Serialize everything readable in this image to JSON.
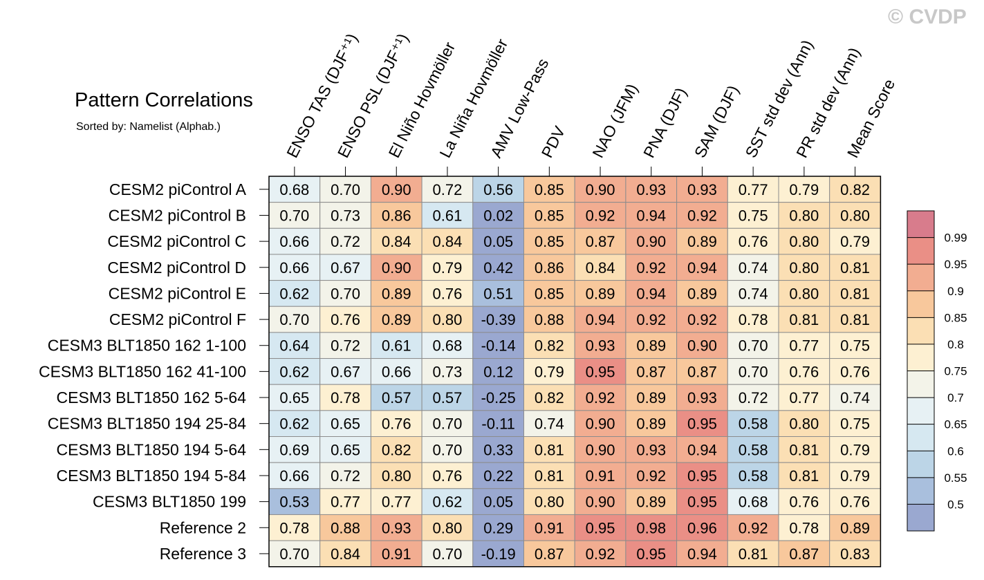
{
  "watermark": "© CVDP",
  "chart_data": {
    "type": "heatmap",
    "title": "Pattern Correlations",
    "subtitle": "Sorted by: Namelist (Alphab.)",
    "columns": [
      "ENSO TAS (DJF⁺¹)",
      "ENSO PSL (DJF⁺¹)",
      "El Niño Hovmöller",
      "La Niña Hovmöller",
      "AMV Low-Pass",
      "PDV",
      "NAO (JFM)",
      "PNA (DJF)",
      "SAM (DJF)",
      "SST std dev (Ann)",
      "PR std dev (Ann)",
      "Mean Score"
    ],
    "rows": [
      "CESM2 piControl A",
      "CESM2 piControl B",
      "CESM2 piControl C",
      "CESM2 piControl D",
      "CESM2 piControl E",
      "CESM2 piControl F",
      "CESM3 BLT1850 162 1-100",
      "CESM3 BLT1850 162 41-100",
      "CESM3 BLT1850 162 5-64",
      "CESM3 BLT1850 194 25-84",
      "CESM3 BLT1850 194 5-64",
      "CESM3 BLT1850 194 5-84",
      "CESM3 BLT1850 199",
      "Reference 2",
      "Reference 3"
    ],
    "values": [
      [
        "0.68",
        "0.70",
        "0.90",
        "0.72",
        "0.56",
        "0.85",
        "0.90",
        "0.93",
        "0.93",
        "0.77",
        "0.79",
        "0.82"
      ],
      [
        "0.70",
        "0.73",
        "0.86",
        "0.61",
        "0.02",
        "0.85",
        "0.92",
        "0.94",
        "0.92",
        "0.75",
        "0.80",
        "0.80"
      ],
      [
        "0.66",
        "0.72",
        "0.84",
        "0.84",
        "0.05",
        "0.85",
        "0.87",
        "0.90",
        "0.89",
        "0.76",
        "0.80",
        "0.79"
      ],
      [
        "0.66",
        "0.67",
        "0.90",
        "0.79",
        "0.42",
        "0.86",
        "0.84",
        "0.92",
        "0.94",
        "0.74",
        "0.80",
        "0.81"
      ],
      [
        "0.62",
        "0.70",
        "0.89",
        "0.76",
        "0.51",
        "0.85",
        "0.89",
        "0.94",
        "0.89",
        "0.74",
        "0.80",
        "0.81"
      ],
      [
        "0.70",
        "0.76",
        "0.89",
        "0.80",
        "-0.39",
        "0.88",
        "0.94",
        "0.92",
        "0.92",
        "0.78",
        "0.81",
        "0.81"
      ],
      [
        "0.64",
        "0.72",
        "0.61",
        "0.68",
        "-0.14",
        "0.82",
        "0.93",
        "0.89",
        "0.90",
        "0.70",
        "0.77",
        "0.75"
      ],
      [
        "0.62",
        "0.67",
        "0.66",
        "0.73",
        "0.12",
        "0.79",
        "0.95",
        "0.87",
        "0.87",
        "0.70",
        "0.76",
        "0.76"
      ],
      [
        "0.65",
        "0.78",
        "0.57",
        "0.57",
        "-0.25",
        "0.82",
        "0.92",
        "0.89",
        "0.93",
        "0.72",
        "0.77",
        "0.74"
      ],
      [
        "0.62",
        "0.65",
        "0.76",
        "0.70",
        "-0.11",
        "0.74",
        "0.90",
        "0.89",
        "0.95",
        "0.58",
        "0.80",
        "0.75"
      ],
      [
        "0.69",
        "0.65",
        "0.82",
        "0.70",
        "0.33",
        "0.81",
        "0.90",
        "0.93",
        "0.94",
        "0.58",
        "0.81",
        "0.79"
      ],
      [
        "0.66",
        "0.72",
        "0.80",
        "0.76",
        "0.22",
        "0.81",
        "0.91",
        "0.92",
        "0.95",
        "0.58",
        "0.81",
        "0.79"
      ],
      [
        "0.53",
        "0.77",
        "0.77",
        "0.62",
        "0.05",
        "0.80",
        "0.90",
        "0.89",
        "0.95",
        "0.68",
        "0.76",
        "0.76"
      ],
      [
        "0.78",
        "0.88",
        "0.93",
        "0.80",
        "0.29",
        "0.91",
        "0.95",
        "0.98",
        "0.96",
        "0.92",
        "0.78",
        "0.89"
      ],
      [
        "0.70",
        "0.84",
        "0.91",
        "0.70",
        "-0.19",
        "0.87",
        "0.92",
        "0.95",
        "0.94",
        "0.81",
        "0.87",
        "0.83"
      ]
    ],
    "colorbar": {
      "levels": [
        "0.99",
        "0.95",
        "0.9",
        "0.85",
        "0.8",
        "0.75",
        "0.7",
        "0.65",
        "0.6",
        "0.55",
        "0.5"
      ],
      "bin_colors_low_to_high": [
        "#9aa8d0",
        "#a9bfdd",
        "#bcd5e7",
        "#d6e8f1",
        "#e7f1f4",
        "#f3f3e9",
        "#fdf0d2",
        "#fbdfb4",
        "#f8c89c",
        "#f2ad91",
        "#ea8f86",
        "#d87c8c"
      ]
    }
  }
}
